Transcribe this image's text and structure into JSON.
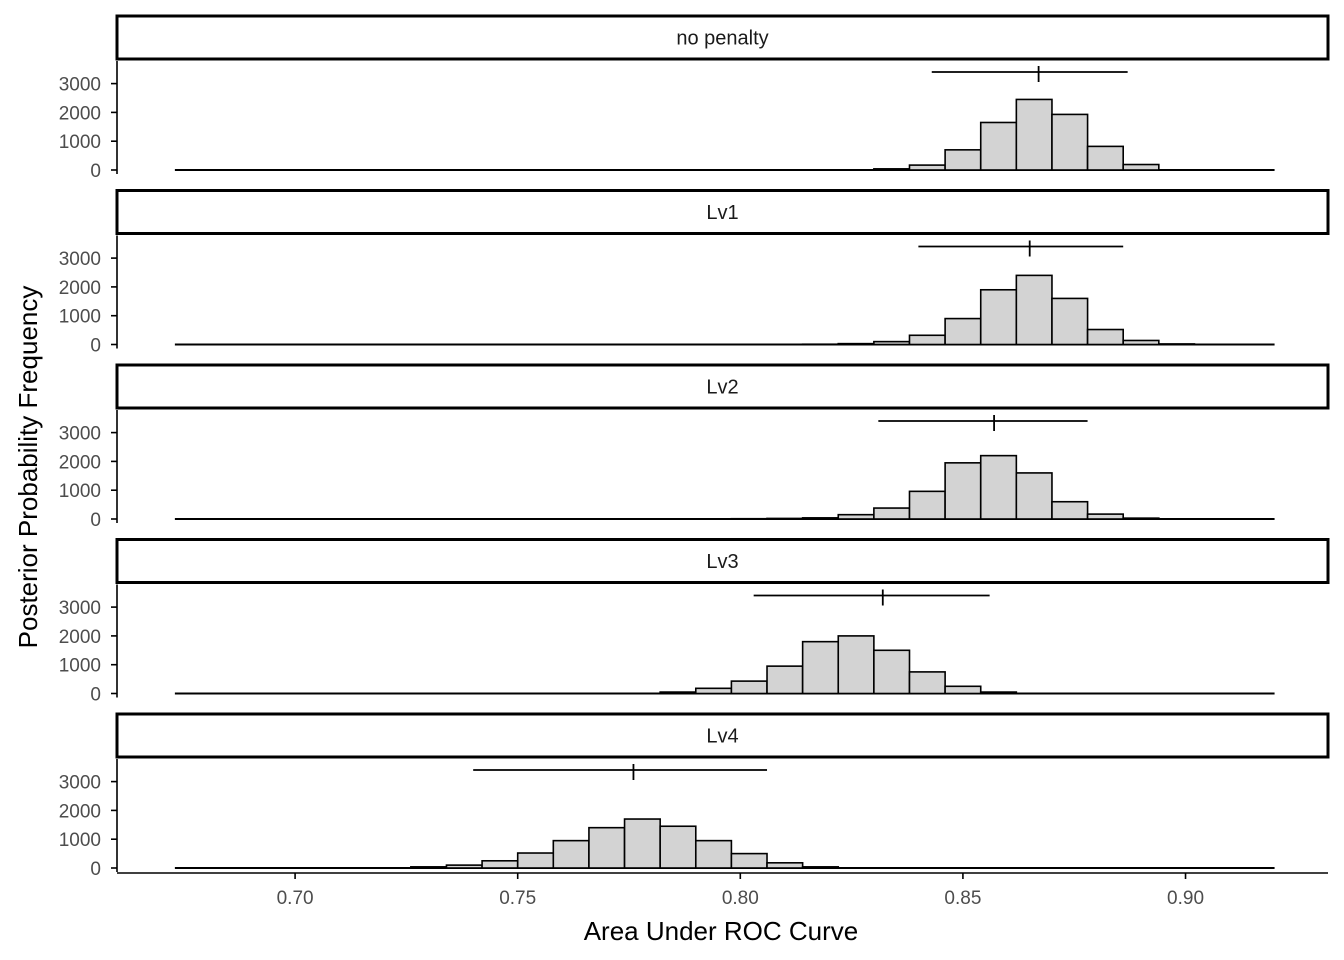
{
  "chart_data": {
    "type": "bar",
    "subtype": "faceted-histogram",
    "xlabel": "Area Under ROC Curve",
    "ylabel": "Posterior Probability Frequency",
    "x_ticks": [
      0.7,
      0.75,
      0.8,
      0.85,
      0.9
    ],
    "x_tick_labels": [
      "0.70",
      "0.75",
      "0.80",
      "0.85",
      "0.90"
    ],
    "y_ticks": [
      0,
      1000,
      2000,
      3000
    ],
    "y_tick_labels": [
      "0",
      "1000",
      "2000",
      "3000"
    ],
    "xlim": [
      0.66,
      0.932
    ],
    "ylim": [
      0,
      3950
    ],
    "baseline_range": [
      0.673,
      0.92
    ],
    "bin_width": 0.008,
    "grid": false,
    "legend": "none",
    "colors": {
      "bar_fill": "#d3d3d3",
      "bar_stroke": "#000000",
      "strip_fill": "#ffffff"
    },
    "panels": [
      {
        "label": "no penalty",
        "ci": {
          "low": 0.843,
          "mid": 0.867,
          "high": 0.887
        },
        "bins": [
          {
            "x": 0.834,
            "count": 40
          },
          {
            "x": 0.842,
            "count": 170
          },
          {
            "x": 0.85,
            "count": 700
          },
          {
            "x": 0.858,
            "count": 1650
          },
          {
            "x": 0.866,
            "count": 2450
          },
          {
            "x": 0.874,
            "count": 1930
          },
          {
            "x": 0.882,
            "count": 820
          },
          {
            "x": 0.89,
            "count": 190
          }
        ]
      },
      {
        "label": "Lv1",
        "ci": {
          "low": 0.84,
          "mid": 0.865,
          "high": 0.886
        },
        "bins": [
          {
            "x": 0.818,
            "count": 10
          },
          {
            "x": 0.826,
            "count": 30
          },
          {
            "x": 0.834,
            "count": 100
          },
          {
            "x": 0.842,
            "count": 320
          },
          {
            "x": 0.85,
            "count": 900
          },
          {
            "x": 0.858,
            "count": 1900
          },
          {
            "x": 0.866,
            "count": 2400
          },
          {
            "x": 0.874,
            "count": 1600
          },
          {
            "x": 0.882,
            "count": 520
          },
          {
            "x": 0.89,
            "count": 140
          },
          {
            "x": 0.898,
            "count": 20
          }
        ]
      },
      {
        "label": "Lv2",
        "ci": {
          "low": 0.831,
          "mid": 0.857,
          "high": 0.878
        },
        "bins": [
          {
            "x": 0.802,
            "count": 10
          },
          {
            "x": 0.81,
            "count": 20
          },
          {
            "x": 0.818,
            "count": 40
          },
          {
            "x": 0.826,
            "count": 150
          },
          {
            "x": 0.834,
            "count": 380
          },
          {
            "x": 0.842,
            "count": 960
          },
          {
            "x": 0.85,
            "count": 1950
          },
          {
            "x": 0.858,
            "count": 2200
          },
          {
            "x": 0.866,
            "count": 1600
          },
          {
            "x": 0.874,
            "count": 600
          },
          {
            "x": 0.882,
            "count": 170
          },
          {
            "x": 0.89,
            "count": 30
          }
        ]
      },
      {
        "label": "Lv3",
        "ci": {
          "low": 0.803,
          "mid": 0.832,
          "high": 0.856
        },
        "bins": [
          {
            "x": 0.786,
            "count": 50
          },
          {
            "x": 0.794,
            "count": 180
          },
          {
            "x": 0.802,
            "count": 430
          },
          {
            "x": 0.81,
            "count": 950
          },
          {
            "x": 0.818,
            "count": 1800
          },
          {
            "x": 0.826,
            "count": 2000
          },
          {
            "x": 0.834,
            "count": 1500
          },
          {
            "x": 0.842,
            "count": 750
          },
          {
            "x": 0.85,
            "count": 250
          },
          {
            "x": 0.858,
            "count": 50
          }
        ]
      },
      {
        "label": "Lv4",
        "ci": {
          "low": 0.74,
          "mid": 0.776,
          "high": 0.806
        },
        "bins": [
          {
            "x": 0.73,
            "count": 40
          },
          {
            "x": 0.738,
            "count": 100
          },
          {
            "x": 0.746,
            "count": 250
          },
          {
            "x": 0.754,
            "count": 520
          },
          {
            "x": 0.762,
            "count": 950
          },
          {
            "x": 0.77,
            "count": 1400
          },
          {
            "x": 0.778,
            "count": 1700
          },
          {
            "x": 0.786,
            "count": 1450
          },
          {
            "x": 0.794,
            "count": 950
          },
          {
            "x": 0.802,
            "count": 500
          },
          {
            "x": 0.81,
            "count": 180
          },
          {
            "x": 0.818,
            "count": 40
          }
        ]
      }
    ]
  }
}
